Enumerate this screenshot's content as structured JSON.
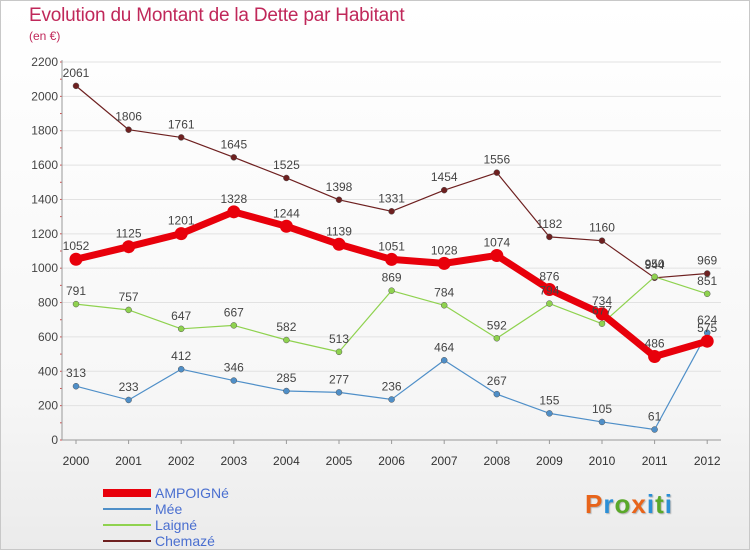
{
  "header": {
    "title": "Evolution du Montant de la Dette par Habitant",
    "subtitle": "(en €)"
  },
  "logo": {
    "letters": [
      "P",
      "r",
      "o",
      "x",
      "i",
      "t",
      "i"
    ],
    "colors": [
      "#e8641a",
      "#2b8fd6",
      "#5aa82a",
      "#e8641a",
      "#2b8fd6",
      "#5aa82a",
      "#2b8fd6"
    ]
  },
  "colors": {
    "AMPOIGNé": "#e8000b",
    "Mée": "#4f8fc8",
    "Laigné": "#8fd24f",
    "Chemazé": "#6e2020"
  },
  "chart_data": {
    "type": "line",
    "title": "Evolution du Montant de la Dette par Habitant",
    "subtitle": "(en €)",
    "xlabel": "",
    "ylabel": "",
    "x": [
      "2000",
      "2001",
      "2002",
      "2003",
      "2004",
      "2005",
      "2006",
      "2007",
      "2008",
      "2009",
      "2010",
      "2011",
      "2012"
    ],
    "ylim": [
      0,
      2200
    ],
    "yticks": [
      0,
      200,
      400,
      600,
      800,
      1000,
      1200,
      1400,
      1600,
      1800,
      2000,
      2200
    ],
    "grid": "horizontal",
    "legend_position": "bottom-left",
    "series": [
      {
        "name": "AMPOIGNé",
        "color": "#e8000b",
        "values": [
          1052,
          1125,
          1201,
          1328,
          1244,
          1139,
          1051,
          1028,
          1074,
          876,
          734,
          486,
          575
        ]
      },
      {
        "name": "Mée",
        "color": "#4f8fc8",
        "values": [
          313,
          233,
          412,
          346,
          285,
          277,
          236,
          464,
          267,
          155,
          105,
          61,
          624
        ]
      },
      {
        "name": "Laigné",
        "color": "#8fd24f",
        "values": [
          791,
          757,
          647,
          667,
          582,
          513,
          869,
          784,
          592,
          794,
          677,
          950,
          851
        ]
      },
      {
        "name": "Chemazé",
        "color": "#6e2020",
        "values": [
          2061,
          1806,
          1761,
          1645,
          1525,
          1398,
          1331,
          1454,
          1556,
          1182,
          1160,
          944,
          969
        ]
      }
    ]
  }
}
